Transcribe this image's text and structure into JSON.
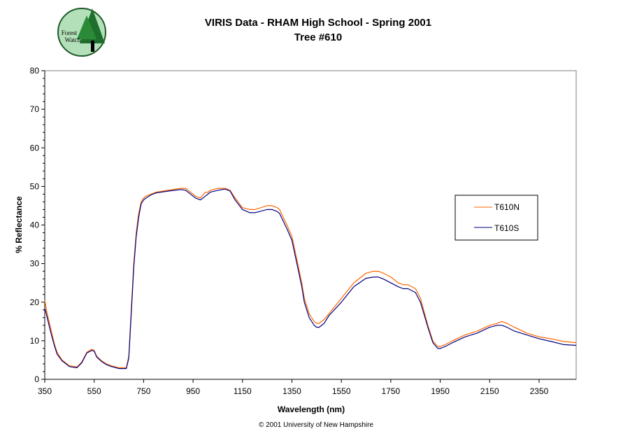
{
  "logo": {
    "text_line1": "Forest",
    "text_line2": "Watch"
  },
  "copyright": "© 2001 University of New Hampshire",
  "chart_data": {
    "type": "line",
    "title": "VIRIS Data - RHAM High School - Spring 2001",
    "subtitle": "Tree #610",
    "xlabel": "Wavelength (nm)",
    "ylabel": "% Reflectance",
    "xlim": [
      350,
      2500
    ],
    "ylim": [
      0,
      80
    ],
    "xticks": [
      350,
      550,
      750,
      950,
      1150,
      1350,
      1550,
      1750,
      1950,
      2150,
      2350
    ],
    "yticks": [
      0,
      10,
      20,
      30,
      40,
      50,
      60,
      70,
      80
    ],
    "grid": false,
    "legend_position": "right",
    "series": [
      {
        "name": "T610N",
        "color": "#FF6600",
        "x": [
          350,
          360,
          375,
          390,
          400,
          420,
          450,
          480,
          500,
          520,
          540,
          550,
          560,
          580,
          600,
          620,
          650,
          680,
          690,
          700,
          710,
          720,
          730,
          740,
          750,
          760,
          780,
          800,
          850,
          900,
          920,
          950,
          960,
          980,
          1000,
          1010,
          1020,
          1050,
          1080,
          1100,
          1120,
          1150,
          1180,
          1200,
          1250,
          1270,
          1290,
          1300,
          1330,
          1350,
          1370,
          1390,
          1400,
          1420,
          1440,
          1450,
          1460,
          1480,
          1500,
          1550,
          1600,
          1650,
          1680,
          1700,
          1720,
          1750,
          1780,
          1800,
          1820,
          1850,
          1870,
          1900,
          1920,
          1940,
          1950,
          1970,
          2000,
          2050,
          2100,
          2150,
          2180,
          2200,
          2220,
          2250,
          2300,
          2350,
          2400,
          2450,
          2500
        ],
        "y": [
          20.5,
          17,
          13,
          9,
          7,
          5,
          3.5,
          3.2,
          4.5,
          7,
          7.8,
          7.5,
          6,
          4.8,
          4,
          3.5,
          3,
          3,
          6,
          18,
          30,
          38,
          43,
          46,
          47,
          47.5,
          48,
          48.5,
          49,
          49.5,
          49.5,
          48,
          47.5,
          47,
          48.5,
          48.5,
          49,
          49.5,
          49.5,
          49,
          47,
          44.5,
          44,
          44,
          45,
          45,
          44.5,
          44,
          40,
          37,
          31,
          25,
          21,
          17,
          15,
          14.5,
          14.5,
          15.5,
          17,
          21,
          25,
          27.5,
          28,
          28,
          27.5,
          26.5,
          25,
          24.5,
          24.5,
          23.5,
          21,
          14,
          10,
          8.5,
          8.5,
          9,
          10,
          11.5,
          12.5,
          14,
          14.5,
          15,
          14.5,
          13.5,
          12,
          11,
          10.5,
          9.8,
          9.5
        ]
      },
      {
        "name": "T610S",
        "color": "#000080",
        "x": [
          350,
          360,
          375,
          390,
          400,
          420,
          450,
          480,
          500,
          520,
          540,
          550,
          560,
          580,
          600,
          620,
          650,
          680,
          690,
          700,
          710,
          720,
          730,
          740,
          750,
          760,
          780,
          800,
          850,
          900,
          920,
          950,
          960,
          980,
          1000,
          1010,
          1020,
          1050,
          1080,
          1100,
          1120,
          1150,
          1180,
          1200,
          1250,
          1270,
          1290,
          1300,
          1330,
          1350,
          1370,
          1390,
          1400,
          1420,
          1440,
          1450,
          1460,
          1480,
          1500,
          1550,
          1600,
          1650,
          1680,
          1700,
          1720,
          1750,
          1780,
          1800,
          1820,
          1850,
          1870,
          1900,
          1920,
          1940,
          1950,
          1970,
          2000,
          2050,
          2100,
          2150,
          2180,
          2200,
          2220,
          2250,
          2300,
          2350,
          2400,
          2450,
          2500
        ],
        "y": [
          18.5,
          16,
          12,
          8.5,
          6.5,
          4.8,
          3.3,
          3,
          4.3,
          6.8,
          7.5,
          7.3,
          5.8,
          4.6,
          3.8,
          3.3,
          2.8,
          2.8,
          5.5,
          17,
          29,
          37,
          42,
          45.5,
          46.5,
          47,
          47.8,
          48.3,
          48.8,
          49.2,
          49,
          47.5,
          47,
          46.5,
          47.5,
          48,
          48.5,
          49,
          49.3,
          48.8,
          46.5,
          44,
          43.2,
          43.2,
          44,
          44,
          43.5,
          43,
          39,
          36,
          30,
          24,
          20,
          16,
          14,
          13.5,
          13.5,
          14.5,
          16.5,
          20,
          24,
          26.2,
          26.5,
          26.5,
          26,
          25,
          24,
          23.5,
          23.5,
          22.5,
          20,
          13.5,
          9.5,
          8,
          8,
          8.5,
          9.5,
          11,
          12,
          13.5,
          14,
          14,
          13.5,
          12.5,
          11.5,
          10.5,
          9.8,
          9,
          8.8
        ]
      }
    ]
  }
}
